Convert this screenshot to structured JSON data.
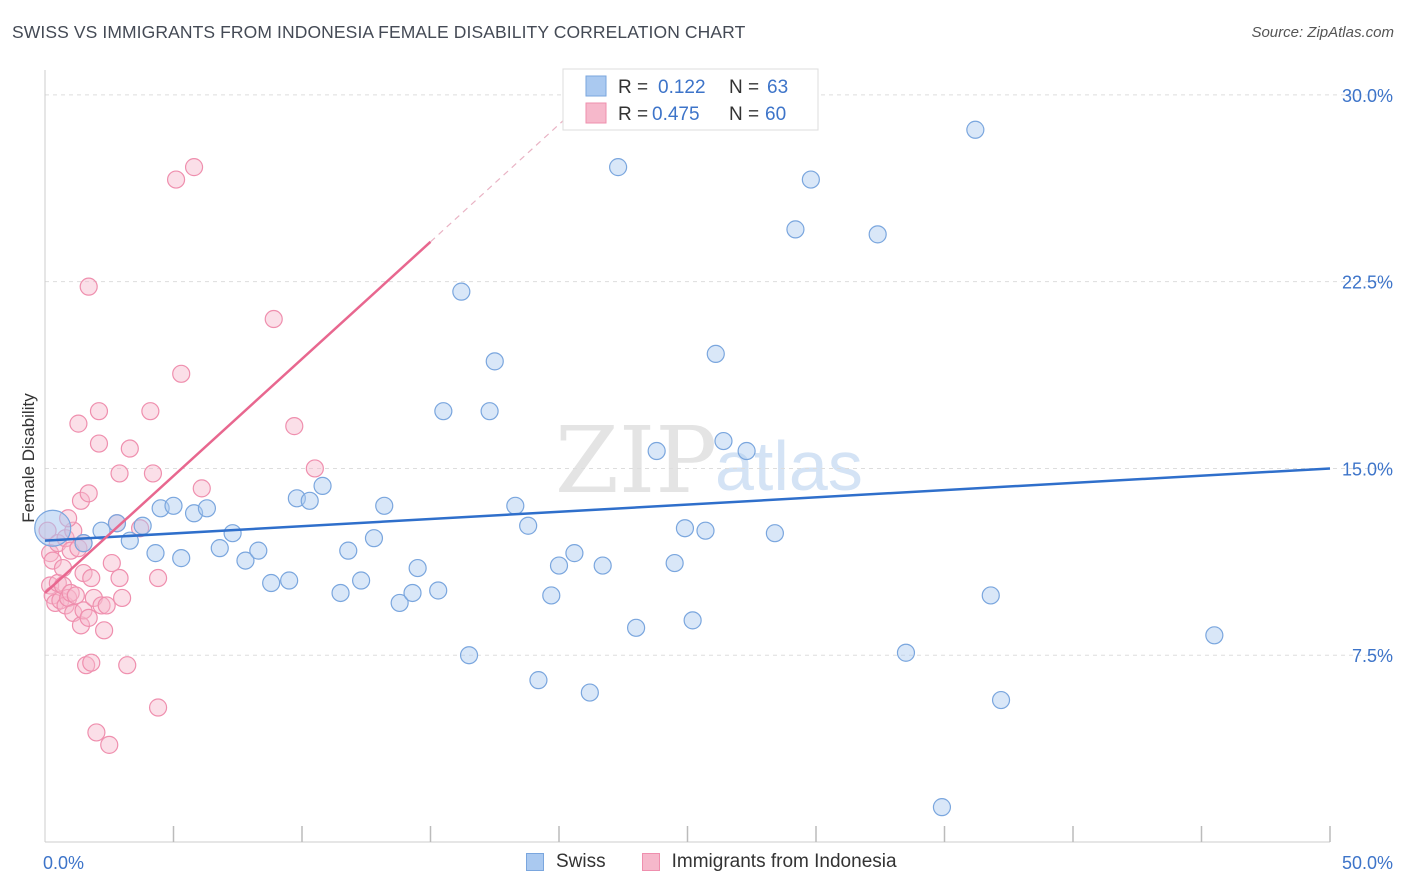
{
  "title": "SWISS VS IMMIGRANTS FROM INDONESIA FEMALE DISABILITY CORRELATION CHART",
  "source": "Source: ZipAtlas.com",
  "watermark": {
    "zip": "ZIP",
    "atlas": "atlas"
  },
  "colors": {
    "blue_fill": "#aac9f0",
    "blue_stroke": "#7aa6de",
    "blue_line": "#2f6fcb",
    "pink_fill": "#f6b8cb",
    "pink_stroke": "#ef8fae",
    "pink_line": "#e8678f",
    "value_text": "#3d74c9",
    "grid": "#dddddd"
  },
  "legend_top": {
    "rows": [
      {
        "r_label": "R =",
        "r_value": "0.122",
        "n_label": "N =",
        "n_value": "63",
        "series": "blue"
      },
      {
        "r_label": "R =",
        "r_value": "0.475",
        "n_label": "N =",
        "n_value": "60",
        "series": "pink"
      }
    ]
  },
  "legend_bottom": {
    "swiss": "Swiss",
    "indonesia": "Immigrants from Indonesia"
  },
  "chart_data": {
    "type": "scatter",
    "title": "SWISS VS IMMIGRANTS FROM INDONESIA FEMALE DISABILITY CORRELATION CHART",
    "xlabel": "",
    "ylabel": "Female Disability",
    "xlim": [
      0,
      50
    ],
    "ylim": [
      0,
      31
    ],
    "x_tick_labels": {
      "min": "0.0%",
      "max": "50.0%"
    },
    "y_ticks": [
      {
        "value": 7.5,
        "label": "7.5%"
      },
      {
        "value": 15.0,
        "label": "15.0%"
      },
      {
        "value": 22.5,
        "label": "22.5%"
      },
      {
        "value": 30.0,
        "label": "30.0%"
      }
    ],
    "x_tick_values": [
      5,
      10,
      15,
      20,
      25,
      30,
      35,
      40,
      45,
      50
    ],
    "series": [
      {
        "name": "Swiss",
        "color": "blue",
        "r": 0.122,
        "n": 63,
        "trend": {
          "x0": 0,
          "y0": 12.1,
          "x1": 50,
          "y1": 15.0
        },
        "points": [
          [
            0.3,
            12.6
          ],
          [
            1.5,
            12.0
          ],
          [
            2.2,
            12.5
          ],
          [
            2.8,
            12.8
          ],
          [
            3.3,
            12.1
          ],
          [
            3.8,
            12.7
          ],
          [
            4.3,
            11.6
          ],
          [
            4.5,
            13.4
          ],
          [
            5.0,
            13.5
          ],
          [
            5.3,
            11.4
          ],
          [
            5.8,
            13.2
          ],
          [
            6.3,
            13.4
          ],
          [
            6.8,
            11.8
          ],
          [
            7.3,
            12.4
          ],
          [
            7.8,
            11.3
          ],
          [
            8.3,
            11.7
          ],
          [
            8.8,
            10.4
          ],
          [
            9.5,
            10.5
          ],
          [
            9.8,
            13.8
          ],
          [
            10.3,
            13.7
          ],
          [
            10.8,
            14.3
          ],
          [
            11.5,
            10.0
          ],
          [
            11.8,
            11.7
          ],
          [
            12.3,
            10.5
          ],
          [
            12.8,
            12.2
          ],
          [
            13.2,
            13.5
          ],
          [
            13.8,
            9.6
          ],
          [
            14.3,
            10.0
          ],
          [
            14.5,
            11.0
          ],
          [
            15.3,
            10.1
          ],
          [
            15.5,
            17.3
          ],
          [
            16.2,
            22.1
          ],
          [
            16.5,
            7.5
          ],
          [
            17.3,
            17.3
          ],
          [
            17.5,
            19.3
          ],
          [
            18.3,
            13.5
          ],
          [
            18.8,
            12.7
          ],
          [
            19.2,
            6.5
          ],
          [
            19.7,
            9.9
          ],
          [
            20.0,
            11.1
          ],
          [
            20.6,
            11.6
          ],
          [
            21.2,
            6.0
          ],
          [
            21.7,
            11.1
          ],
          [
            22.3,
            27.1
          ],
          [
            23.0,
            8.6
          ],
          [
            23.8,
            15.7
          ],
          [
            24.5,
            11.2
          ],
          [
            24.9,
            12.6
          ],
          [
            25.2,
            8.9
          ],
          [
            25.7,
            12.5
          ],
          [
            26.1,
            19.6
          ],
          [
            26.4,
            16.1
          ],
          [
            27.3,
            15.7
          ],
          [
            29.2,
            24.6
          ],
          [
            29.8,
            26.6
          ],
          [
            32.4,
            24.4
          ],
          [
            33.5,
            7.6
          ],
          [
            34.9,
            1.4
          ],
          [
            36.2,
            28.6
          ],
          [
            36.8,
            9.9
          ],
          [
            37.2,
            5.7
          ],
          [
            45.5,
            8.3
          ],
          [
            28.4,
            12.4
          ]
        ]
      },
      {
        "name": "Immigrants from Indonesia",
        "color": "pink",
        "r": 0.475,
        "n": 60,
        "trend": {
          "x0": 0,
          "y0": 10.0,
          "x1": 15,
          "y1": 24.1
        },
        "trend_dashed_to": {
          "x": 22,
          "y": 30.7
        },
        "points": [
          [
            0.1,
            12.5
          ],
          [
            0.2,
            11.6
          ],
          [
            0.2,
            10.3
          ],
          [
            0.3,
            9.9
          ],
          [
            0.3,
            11.3
          ],
          [
            0.4,
            9.6
          ],
          [
            0.5,
            10.4
          ],
          [
            0.5,
            12.0
          ],
          [
            0.6,
            9.7
          ],
          [
            0.7,
            10.3
          ],
          [
            0.7,
            11.0
          ],
          [
            0.8,
            9.5
          ],
          [
            0.8,
            12.2
          ],
          [
            0.9,
            9.8
          ],
          [
            1.0,
            11.7
          ],
          [
            1.0,
            10.0
          ],
          [
            1.1,
            9.2
          ],
          [
            1.1,
            12.5
          ],
          [
            1.2,
            9.9
          ],
          [
            1.3,
            11.8
          ],
          [
            1.3,
            16.8
          ],
          [
            1.4,
            8.7
          ],
          [
            1.4,
            13.7
          ],
          [
            1.5,
            10.8
          ],
          [
            1.5,
            9.3
          ],
          [
            1.6,
            7.1
          ],
          [
            1.7,
            9.0
          ],
          [
            1.7,
            14.0
          ],
          [
            1.7,
            22.3
          ],
          [
            1.8,
            10.6
          ],
          [
            1.8,
            7.2
          ],
          [
            1.9,
            9.8
          ],
          [
            2.0,
            4.4
          ],
          [
            2.1,
            17.3
          ],
          [
            2.1,
            16.0
          ],
          [
            2.2,
            9.5
          ],
          [
            2.3,
            8.5
          ],
          [
            2.4,
            9.5
          ],
          [
            2.5,
            3.9
          ],
          [
            2.6,
            11.2
          ],
          [
            2.8,
            12.8
          ],
          [
            2.9,
            10.6
          ],
          [
            2.9,
            14.8
          ],
          [
            3.0,
            9.8
          ],
          [
            3.2,
            7.1
          ],
          [
            3.3,
            15.8
          ],
          [
            4.1,
            17.3
          ],
          [
            4.2,
            14.8
          ],
          [
            4.4,
            10.6
          ],
          [
            4.4,
            5.4
          ],
          [
            5.1,
            26.6
          ],
          [
            5.3,
            18.8
          ],
          [
            5.8,
            27.1
          ],
          [
            6.1,
            14.2
          ],
          [
            8.9,
            21.0
          ],
          [
            9.7,
            16.7
          ],
          [
            10.5,
            15.0
          ],
          [
            1.5,
            12.0
          ],
          [
            0.9,
            13.0
          ],
          [
            3.7,
            12.6
          ]
        ]
      }
    ]
  }
}
